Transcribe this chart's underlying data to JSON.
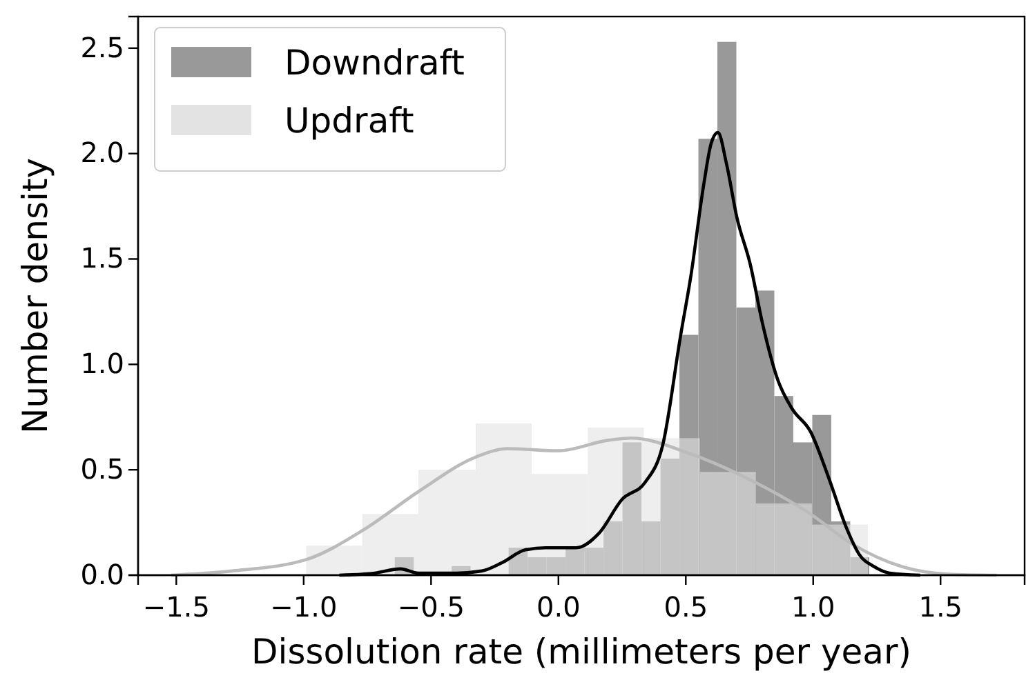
{
  "chart_data": {
    "type": "histogram",
    "xlabel": "Dissolution rate (millimeters per year)",
    "ylabel": "Number density",
    "xlim": [
      -1.65,
      1.83
    ],
    "ylim": [
      0,
      2.65
    ],
    "xticks": [
      {
        "value": -1.5,
        "label": "−1.5"
      },
      {
        "value": -1,
        "label": "−1.0"
      },
      {
        "value": -0.5,
        "label": "−0.5"
      },
      {
        "value": 0,
        "label": "0.0"
      },
      {
        "value": 0.5,
        "label": "0.5"
      },
      {
        "value": 1,
        "label": "1.0"
      },
      {
        "value": 1.5,
        "label": "1.5"
      }
    ],
    "yticks": [
      {
        "value": 0,
        "label": "0.0"
      },
      {
        "value": 0.5,
        "label": "0.5"
      },
      {
        "value": 1,
        "label": "1.0"
      },
      {
        "value": 1.5,
        "label": "1.5"
      },
      {
        "value": 2,
        "label": "2.0"
      },
      {
        "value": 2.5,
        "label": "2.5"
      }
    ],
    "legend": "top left",
    "series": [
      {
        "type": "histogram",
        "name": "Downdraft",
        "color": "#999999",
        "bins": [
          -0.866,
          -0.7915,
          -0.717,
          -0.6425,
          -0.568,
          -0.4935,
          -0.419,
          -0.3445,
          -0.27,
          -0.1955,
          -0.121,
          -0.0465,
          0.028,
          0.1025,
          0.177,
          0.2515,
          0.326,
          0.4005,
          0.475,
          0.5495,
          0.624,
          0.6985,
          0.773,
          0.8475,
          0.922,
          0.9965,
          1.071,
          1.1455,
          1.22
        ],
        "values": [
          0,
          0,
          0,
          0.085,
          0,
          0,
          0.043,
          0,
          0,
          0.13,
          0.085,
          0.085,
          0.13,
          0.13,
          0.255,
          0.63,
          0.255,
          0.553,
          1.14,
          2.07,
          2.53,
          1.27,
          1.35,
          0.85,
          0.63,
          0.76,
          0.255,
          0.085
        ]
      },
      {
        "type": "histogram",
        "name": "Updraft",
        "color": "#e3e3e3",
        "bins": [
          -0.99,
          -0.77,
          -0.55,
          -0.325,
          -0.105,
          0.115,
          0.335,
          0.555,
          0.775,
          0.995,
          1.215
        ],
        "values": [
          0.14,
          0.29,
          0.5,
          0.72,
          0.48,
          0.7,
          0.65,
          0.49,
          0.34,
          0.24
        ]
      },
      {
        "type": "line",
        "color": "#bbbbbb",
        "x": [
          -1.52,
          -1.28,
          -0.99,
          -0.765,
          -0.545,
          -0.325,
          -0.2,
          0.0,
          0.195,
          0.285,
          0.52,
          0.773,
          0.99,
          1.15,
          1.35,
          1.53,
          1.72
        ],
        "values": [
          0,
          0.02,
          0.074,
          0.215,
          0.4,
          0.56,
          0.6,
          0.59,
          0.64,
          0.65,
          0.575,
          0.44,
          0.29,
          0.15,
          0.04,
          0.005,
          0
        ]
      },
      {
        "type": "line",
        "color": "#000000",
        "x": [
          -0.86,
          -0.72,
          -0.62,
          -0.55,
          -0.4,
          -0.3,
          -0.22,
          -0.13,
          -0.05,
          0.07,
          0.16,
          0.25,
          0.34,
          0.41,
          0.48,
          0.52,
          0.57,
          0.6,
          0.626,
          0.66,
          0.7,
          0.754,
          0.8,
          0.86,
          0.917,
          0.99,
          1.06,
          1.13,
          1.18,
          1.24,
          1.3,
          1.42
        ],
        "values": [
          0,
          0.01,
          0.03,
          0.01,
          0.01,
          0.02,
          0.06,
          0.12,
          0.13,
          0.13,
          0.2,
          0.36,
          0.44,
          0.62,
          1.14,
          1.42,
          1.85,
          2.05,
          2.1,
          1.95,
          1.7,
          1.47,
          1.2,
          0.93,
          0.79,
          0.68,
          0.465,
          0.226,
          0.1,
          0.04,
          0.01,
          0
        ]
      }
    ]
  }
}
